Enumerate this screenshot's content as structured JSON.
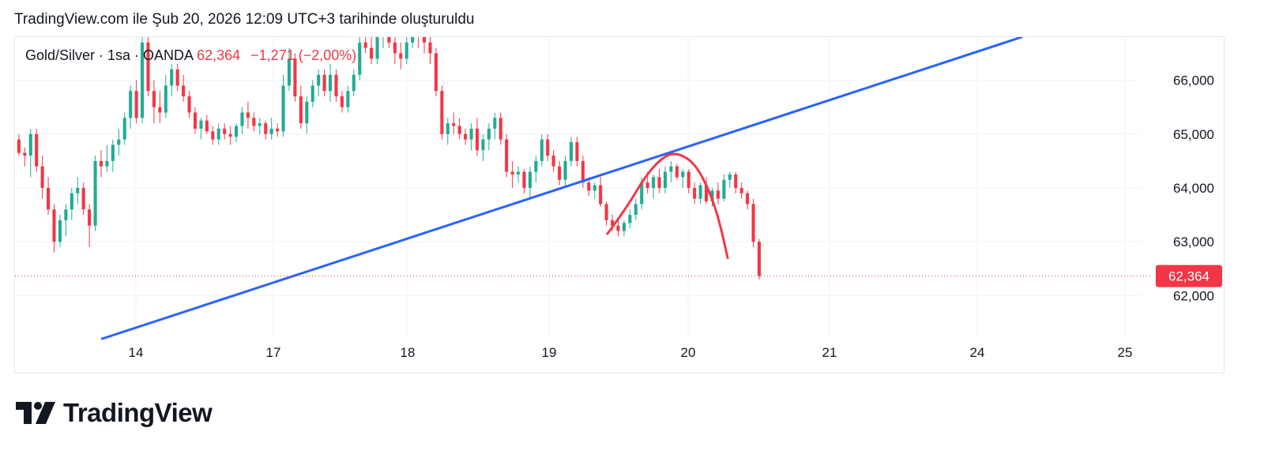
{
  "caption": "TradingView.com ile Şub 20, 2026 12:09 UTC+3 tarihinde oluşturuldu",
  "legend": {
    "symbol": "Gold/Silver · 1sa · OANDA",
    "last": "62,364",
    "change": "−1,271 (−2,00%)"
  },
  "brand": {
    "name": "TradingView"
  },
  "colors": {
    "up": "#22ab94",
    "down": "#f23645",
    "trendline": "#2962ff",
    "arc": "#f23645",
    "grid": "#f0f3fa",
    "axis_text": "#131722"
  },
  "chart_data": {
    "type": "candlestick",
    "title": "Gold/Silver · 1sa · OANDA",
    "interval": "1sa",
    "source": "OANDA",
    "xlabel": "",
    "ylabel": "",
    "ylim": [
      61200,
      66800
    ],
    "grid": true,
    "y_ticks": [
      "66,000",
      "65,000",
      "64,000",
      "63,000",
      "62,000"
    ],
    "y_tick_values": [
      66000,
      65000,
      64000,
      63000,
      62000
    ],
    "x_ticks": [
      {
        "label": "14",
        "session": 14
      },
      {
        "label": "17",
        "session": 17
      },
      {
        "label": "18",
        "session": 18
      },
      {
        "label": "19",
        "session": 19
      },
      {
        "label": "20",
        "session": 20
      },
      {
        "label": "21",
        "session": 21
      },
      {
        "label": "24",
        "session": 22
      },
      {
        "label": "25",
        "session": 23
      }
    ],
    "last_price": 62364,
    "last_price_label": "62,364",
    "candles": [
      [
        64900,
        65600,
        64700,
        64800
      ],
      [
        64800,
        65100,
        64500,
        64900
      ],
      [
        64900,
        65000,
        64600,
        64650
      ],
      [
        64650,
        64750,
        64400,
        64600
      ],
      [
        64600,
        65100,
        64200,
        65000
      ],
      [
        65000,
        65100,
        64300,
        64400
      ],
      [
        64400,
        64600,
        63800,
        64000
      ],
      [
        64000,
        64200,
        63500,
        63600
      ],
      [
        63600,
        63700,
        62800,
        63000
      ],
      [
        63000,
        63500,
        62900,
        63400
      ],
      [
        63400,
        63700,
        63100,
        63600
      ],
      [
        63600,
        64000,
        63400,
        63900
      ],
      [
        63900,
        64200,
        63700,
        64000
      ],
      [
        64000,
        64100,
        63500,
        63600
      ],
      [
        63600,
        63700,
        62900,
        63300
      ],
      [
        63300,
        64600,
        63200,
        64500
      ],
      [
        64500,
        64700,
        64200,
        64400
      ],
      [
        64400,
        64800,
        64300,
        64500
      ],
      [
        64500,
        64900,
        64300,
        64800
      ],
      [
        64800,
        65100,
        64600,
        64900
      ],
      [
        64900,
        65400,
        64800,
        65300
      ],
      [
        65300,
        65900,
        65100,
        65800
      ],
      [
        65800,
        66000,
        65200,
        65300
      ],
      [
        65300,
        66900,
        65200,
        66700
      ],
      [
        66700,
        66900,
        65700,
        65800
      ],
      [
        65800,
        66000,
        65200,
        65500
      ],
      [
        65500,
        65800,
        65200,
        65400
      ],
      [
        65400,
        66100,
        65300,
        65900
      ],
      [
        65900,
        66300,
        65700,
        66200
      ],
      [
        66200,
        66300,
        65800,
        65900
      ],
      [
        65900,
        66100,
        65600,
        65700
      ],
      [
        65700,
        65800,
        65300,
        65400
      ],
      [
        65400,
        65500,
        65000,
        65100
      ],
      [
        65100,
        65300,
        64900,
        65250
      ],
      [
        65250,
        65350,
        65000,
        65050
      ],
      [
        65050,
        65150,
        64800,
        64900
      ],
      [
        64900,
        65200,
        64800,
        65100
      ],
      [
        65100,
        65200,
        64900,
        65000
      ],
      [
        65000,
        65150,
        64800,
        64950
      ],
      [
        64950,
        65200,
        64850,
        65150
      ],
      [
        65150,
        65500,
        65000,
        65400
      ],
      [
        65400,
        65600,
        65100,
        65300
      ],
      [
        65300,
        65400,
        65050,
        65150
      ],
      [
        65150,
        65300,
        65000,
        65200
      ],
      [
        65200,
        65250,
        64900,
        65000
      ],
      [
        65000,
        65300,
        64900,
        65100
      ],
      [
        65100,
        65200,
        64950,
        65050
      ],
      [
        65050,
        66100,
        64950,
        65900
      ],
      [
        65900,
        66600,
        65800,
        66400
      ],
      [
        66400,
        66500,
        65600,
        65700
      ],
      [
        65700,
        65900,
        65100,
        65200
      ],
      [
        65200,
        65700,
        65000,
        65600
      ],
      [
        65600,
        66000,
        65500,
        65900
      ],
      [
        65900,
        66200,
        65700,
        66100
      ],
      [
        66100,
        66200,
        65700,
        65800
      ],
      [
        65800,
        66300,
        65600,
        66100
      ],
      [
        66100,
        66200,
        65600,
        65700
      ],
      [
        65700,
        65800,
        65400,
        65500
      ],
      [
        65500,
        65900,
        65400,
        65800
      ],
      [
        65800,
        66200,
        65700,
        66100
      ],
      [
        66100,
        66800,
        66000,
        66700
      ],
      [
        66700,
        66900,
        66500,
        66600
      ],
      [
        66600,
        66800,
        66300,
        66400
      ],
      [
        66400,
        66900,
        66300,
        66800
      ],
      [
        66800,
        67200,
        66600,
        67000
      ],
      [
        67000,
        67100,
        66600,
        66700
      ],
      [
        66700,
        66900,
        66300,
        66500
      ],
      [
        66500,
        66700,
        66200,
        66400
      ],
      [
        66400,
        66800,
        66300,
        66700
      ],
      [
        66700,
        67100,
        66600,
        67000
      ],
      [
        67000,
        67100,
        66600,
        66800
      ],
      [
        66800,
        67000,
        66500,
        66700
      ],
      [
        66700,
        66800,
        66300,
        66500
      ],
      [
        66500,
        66600,
        65700,
        65800
      ],
      [
        65800,
        65900,
        64900,
        65000
      ],
      [
        65000,
        65300,
        64800,
        65200
      ],
      [
        65200,
        65400,
        65000,
        65150
      ],
      [
        65150,
        65300,
        64900,
        65000
      ],
      [
        65000,
        65100,
        64800,
        64900
      ],
      [
        64900,
        65200,
        64700,
        65100
      ],
      [
        65100,
        65300,
        64600,
        64700
      ],
      [
        64700,
        65000,
        64500,
        64900
      ],
      [
        64900,
        65200,
        64700,
        65100
      ],
      [
        65100,
        65400,
        64900,
        65300
      ],
      [
        65300,
        65400,
        64800,
        64900
      ],
      [
        64900,
        65000,
        64200,
        64300
      ],
      [
        64300,
        64500,
        64000,
        64250
      ],
      [
        64250,
        64400,
        64100,
        64300
      ],
      [
        64300,
        64350,
        63900,
        64000
      ],
      [
        64000,
        64400,
        63800,
        64300
      ],
      [
        64300,
        64600,
        64100,
        64500
      ],
      [
        64500,
        65000,
        64400,
        64900
      ],
      [
        64900,
        65000,
        64500,
        64600
      ],
      [
        64600,
        64700,
        64300,
        64400
      ],
      [
        64400,
        64500,
        64050,
        64150
      ],
      [
        64150,
        64600,
        64000,
        64500
      ],
      [
        64500,
        64950,
        64400,
        64850
      ],
      [
        64850,
        64950,
        64400,
        64500
      ],
      [
        64500,
        64600,
        64000,
        64100
      ],
      [
        64100,
        64200,
        63850,
        63950
      ],
      [
        63950,
        64100,
        63800,
        64050
      ],
      [
        64050,
        64200,
        63650,
        63700
      ],
      [
        63700,
        63750,
        63300,
        63400
      ],
      [
        63400,
        63500,
        63200,
        63300
      ],
      [
        63300,
        63450,
        63100,
        63200
      ],
      [
        63200,
        63400,
        63100,
        63350
      ],
      [
        63350,
        63600,
        63250,
        63500
      ],
      [
        63500,
        63800,
        63400,
        63700
      ],
      [
        63700,
        64200,
        63600,
        64100
      ],
      [
        64100,
        64300,
        63900,
        64000
      ],
      [
        64000,
        64250,
        63800,
        64200
      ],
      [
        64200,
        64350,
        63900,
        64000
      ],
      [
        64000,
        64400,
        63900,
        64300
      ],
      [
        64300,
        64500,
        64100,
        64400
      ],
      [
        64400,
        64450,
        64150,
        64200
      ],
      [
        64200,
        64350,
        64000,
        64300
      ],
      [
        64300,
        64350,
        63900,
        64000
      ],
      [
        64000,
        64100,
        63700,
        63800
      ],
      [
        63800,
        64100,
        63700,
        64050
      ],
      [
        64050,
        64200,
        63700,
        63750
      ],
      [
        63750,
        64000,
        63650,
        63950
      ],
      [
        63950,
        64100,
        63700,
        63800
      ],
      [
        63800,
        64250,
        63750,
        64150
      ],
      [
        64150,
        64300,
        64000,
        64250
      ],
      [
        64250,
        64300,
        63900,
        64000
      ],
      [
        64000,
        64100,
        63800,
        63900
      ],
      [
        63900,
        63950,
        63600,
        63700
      ],
      [
        63700,
        63800,
        62900,
        63000
      ],
      [
        63000,
        63050,
        62300,
        62364
      ]
    ],
    "trendline": [
      {
        "x": 13.8,
        "y": 61200
      },
      {
        "x": 22.3,
        "y": 66800
      }
    ],
    "arc": [
      {
        "x": 19.42,
        "y": 63150
      },
      {
        "x": 19.55,
        "y": 63600
      },
      {
        "x": 19.7,
        "y": 64250
      },
      {
        "x": 19.83,
        "y": 64600
      },
      {
        "x": 19.93,
        "y": 64650
      },
      {
        "x": 20.05,
        "y": 64450
      },
      {
        "x": 20.15,
        "y": 63950
      },
      {
        "x": 20.22,
        "y": 63400
      },
      {
        "x": 20.28,
        "y": 62700
      }
    ]
  }
}
